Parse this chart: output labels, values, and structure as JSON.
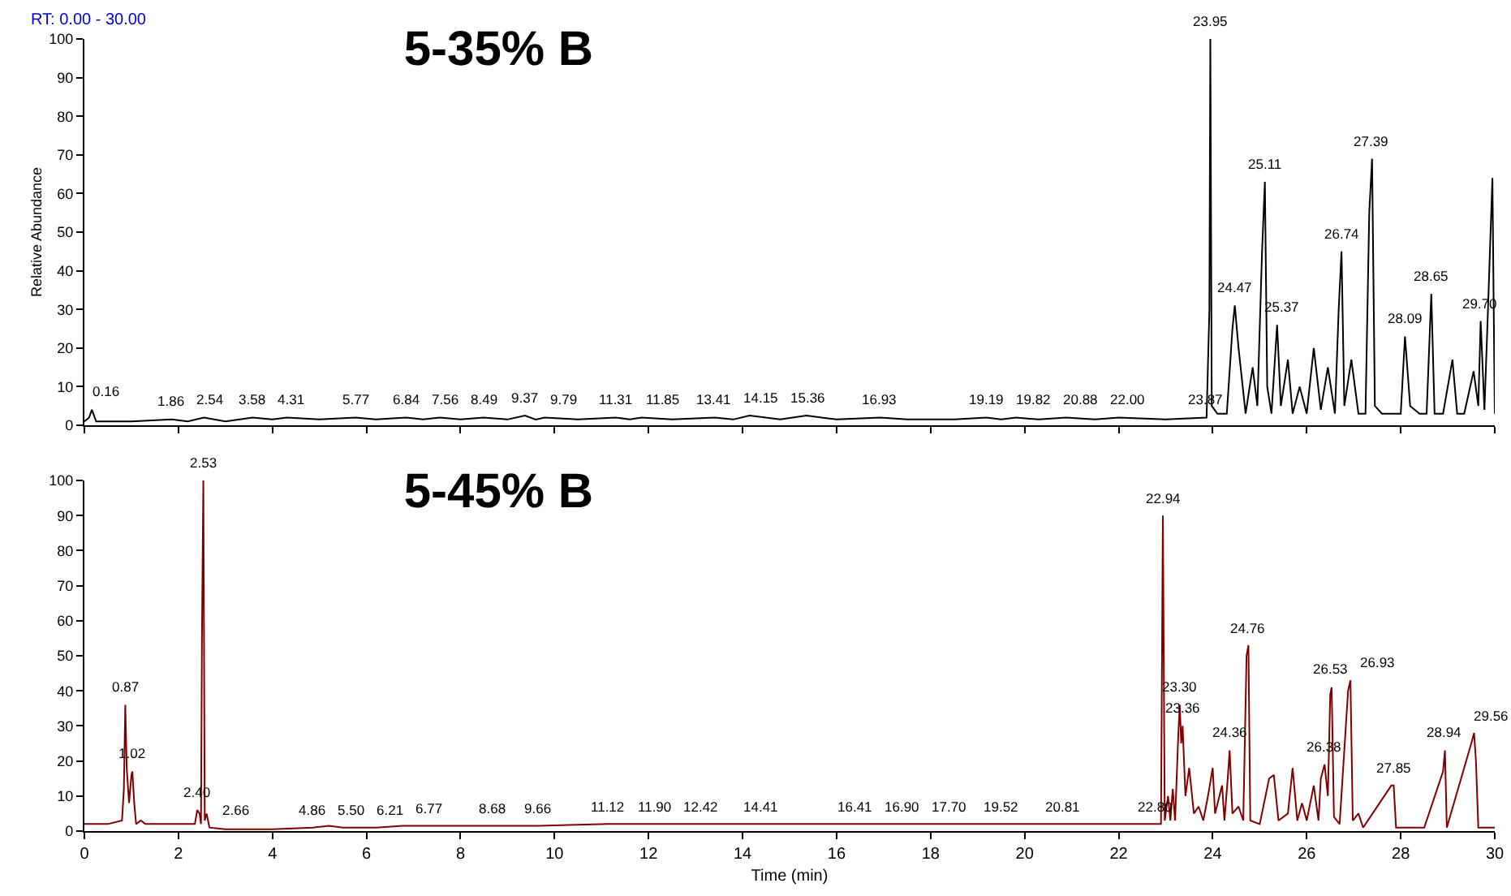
{
  "chart_data": [
    {
      "type": "line",
      "title": "5-35% B",
      "ylabel": "Relative Abundance",
      "xlim": [
        0,
        30
      ],
      "xticks": [
        0,
        2,
        4,
        6,
        8,
        10,
        12,
        14,
        16,
        18,
        20,
        22,
        24,
        26,
        28,
        30
      ],
      "ylim": [
        0,
        100
      ],
      "yticks": [
        0,
        10,
        20,
        30,
        40,
        50,
        60,
        70,
        80,
        90,
        100
      ],
      "tick_labels": "y",
      "grid": false,
      "marker": "none",
      "line_style": "solid",
      "annotations": [
        "RT: 0.00 - 30.00",
        {
          "text": "0.16",
          "x": 0.16,
          "y": 4
        },
        {
          "text": "1.86",
          "x": 1.86,
          "y": 1.5
        },
        {
          "text": "2.54",
          "x": 2.54,
          "y": 2
        },
        {
          "text": "3.58",
          "x": 3.58,
          "y": 2
        },
        {
          "text": "4.31",
          "x": 4.31,
          "y": 2
        },
        {
          "text": "5.77",
          "x": 5.77,
          "y": 2
        },
        {
          "text": "6.84",
          "x": 6.84,
          "y": 2
        },
        {
          "text": "7.56",
          "x": 7.56,
          "y": 2
        },
        {
          "text": "8.49",
          "x": 8.49,
          "y": 2
        },
        {
          "text": "9.37",
          "x": 9.37,
          "y": 2.5
        },
        {
          "text": "9.79",
          "x": 9.79,
          "y": 2
        },
        {
          "text": "11.31",
          "x": 11.31,
          "y": 2
        },
        {
          "text": "11.85",
          "x": 11.85,
          "y": 2
        },
        {
          "text": "13.41",
          "x": 13.41,
          "y": 2
        },
        {
          "text": "14.15",
          "x": 14.15,
          "y": 2.5
        },
        {
          "text": "15.36",
          "x": 15.36,
          "y": 2.5
        },
        {
          "text": "16.93",
          "x": 16.93,
          "y": 2
        },
        {
          "text": "19.19",
          "x": 19.19,
          "y": 2
        },
        {
          "text": "19.82",
          "x": 19.82,
          "y": 2
        },
        {
          "text": "20.88",
          "x": 20.88,
          "y": 2
        },
        {
          "text": "22.00",
          "x": 22,
          "y": 2
        },
        {
          "text": "23.87",
          "x": 23.87,
          "y": 2
        },
        {
          "text": "23.95",
          "x": 23.95,
          "y": 100
        },
        {
          "text": "24.47",
          "x": 24.47,
          "y": 31
        },
        {
          "text": "25.11",
          "x": 25.11,
          "y": 63
        },
        {
          "text": "25.37",
          "x": 25.37,
          "y": 26
        },
        {
          "text": "26.74",
          "x": 26.74,
          "y": 45
        },
        {
          "text": "27.39",
          "x": 27.39,
          "y": 69
        },
        {
          "text": "28.09",
          "x": 28.09,
          "y": 23
        },
        {
          "text": "28.65",
          "x": 28.65,
          "y": 34
        },
        {
          "text": "29.70",
          "x": 29.7,
          "y": 27
        }
      ],
      "series": [
        {
          "color": "#000000",
          "x": [
            0,
            0.1,
            0.16,
            0.25,
            0.5,
            1.0,
            1.86,
            2.2,
            2.54,
            3.0,
            3.58,
            4.0,
            4.31,
            5.0,
            5.77,
            6.2,
            6.84,
            7.2,
            7.56,
            8.0,
            8.49,
            9.0,
            9.37,
            9.6,
            9.79,
            10.5,
            11.31,
            11.6,
            11.85,
            12.5,
            13.41,
            13.8,
            14.15,
            14.8,
            15.36,
            16.0,
            16.93,
            17.5,
            18.5,
            19.19,
            19.5,
            19.82,
            20.3,
            20.88,
            21.5,
            22.0,
            23.0,
            23.87,
            23.93,
            23.95,
            23.98,
            24.1,
            24.3,
            24.42,
            24.47,
            24.55,
            24.7,
            24.85,
            24.95,
            25.05,
            25.11,
            25.16,
            25.25,
            25.37,
            25.45,
            25.6,
            25.7,
            25.85,
            26.0,
            26.15,
            26.3,
            26.45,
            26.6,
            26.68,
            26.74,
            26.8,
            26.95,
            27.1,
            27.25,
            27.33,
            27.39,
            27.45,
            27.6,
            27.8,
            28.0,
            28.09,
            28.2,
            28.4,
            28.55,
            28.65,
            28.72,
            28.9,
            29.1,
            29.2,
            29.35,
            29.55,
            29.65,
            29.7,
            29.78,
            29.85,
            29.95,
            30
          ],
          "values": [
            1,
            2,
            4,
            1,
            1,
            1,
            1.5,
            1,
            2,
            1,
            2,
            1.5,
            2,
            1.5,
            2,
            1.5,
            2,
            1.5,
            2,
            1.5,
            2,
            1.5,
            2.5,
            1.5,
            2,
            1.5,
            2,
            1.5,
            2,
            1.5,
            2,
            1.5,
            2.5,
            1.5,
            2.5,
            1.5,
            2,
            1.5,
            1.5,
            2,
            1.5,
            2,
            1.5,
            2,
            1.5,
            2,
            1.5,
            2,
            30,
            100,
            5,
            3,
            3,
            25,
            31,
            20,
            3,
            15,
            5,
            45,
            63,
            10,
            3,
            26,
            5,
            17,
            3,
            10,
            3,
            20,
            4,
            15,
            3,
            30,
            45,
            5,
            17,
            3,
            3,
            55,
            69,
            5,
            3,
            3,
            3,
            23,
            5,
            3,
            3,
            34,
            3,
            3,
            17,
            3,
            3,
            14,
            5,
            27,
            4,
            28,
            64,
            3
          ]
        }
      ]
    },
    {
      "type": "line",
      "title": "5-45% B",
      "xlabel": "Time (min)",
      "xlim": [
        0,
        30
      ],
      "xticks": [
        0,
        2,
        4,
        6,
        8,
        10,
        12,
        14,
        16,
        18,
        20,
        22,
        24,
        26,
        28,
        30
      ],
      "ylim": [
        0,
        100
      ],
      "yticks": [
        0,
        10,
        20,
        30,
        40,
        50,
        60,
        70,
        80,
        90,
        100
      ],
      "grid": false,
      "marker": "none",
      "line_style": "solid",
      "annotations": [
        {
          "text": "0.87",
          "x": 0.87,
          "y": 36
        },
        {
          "text": "1.02",
          "x": 1.02,
          "y": 17
        },
        {
          "text": "2.40",
          "x": 2.4,
          "y": 6
        },
        {
          "text": "2.53",
          "x": 2.53,
          "y": 100
        },
        {
          "text": "2.66",
          "x": 2.66,
          "y": 1
        },
        {
          "text": "4.86",
          "x": 4.86,
          "y": 1
        },
        {
          "text": "5.50",
          "x": 5.5,
          "y": 1
        },
        {
          "text": "6.21",
          "x": 6.21,
          "y": 1
        },
        {
          "text": "6.77",
          "x": 6.77,
          "y": 1.5
        },
        {
          "text": "8.68",
          "x": 8.68,
          "y": 1.5
        },
        {
          "text": "9.66",
          "x": 9.66,
          "y": 1.5
        },
        {
          "text": "11.12",
          "x": 11.12,
          "y": 2
        },
        {
          "text": "11.90",
          "x": 11.9,
          "y": 2
        },
        {
          "text": "12.42",
          "x": 12.42,
          "y": 2
        },
        {
          "text": "14.41",
          "x": 14.41,
          "y": 2
        },
        {
          "text": "16.41",
          "x": 16.41,
          "y": 2
        },
        {
          "text": "16.90",
          "x": 16.9,
          "y": 2
        },
        {
          "text": "17.70",
          "x": 17.7,
          "y": 2
        },
        {
          "text": "19.52",
          "x": 19.52,
          "y": 2
        },
        {
          "text": "20.81",
          "x": 20.81,
          "y": 2
        },
        {
          "text": "22.80",
          "x": 22.8,
          "y": 2
        },
        {
          "text": "22.94",
          "x": 22.94,
          "y": 90
        },
        {
          "text": "23.30",
          "x": 23.3,
          "y": 36
        },
        {
          "text": "23.36",
          "x": 23.36,
          "y": 30
        },
        {
          "text": "24.36",
          "x": 24.36,
          "y": 23
        },
        {
          "text": "24.76",
          "x": 24.76,
          "y": 53
        },
        {
          "text": "26.38",
          "x": 26.38,
          "y": 19
        },
        {
          "text": "26.53",
          "x": 26.53,
          "y": 41
        },
        {
          "text": "26.93",
          "x": 26.93,
          "y": 43
        },
        {
          "text": "27.85",
          "x": 27.85,
          "y": 13
        },
        {
          "text": "28.94",
          "x": 28.94,
          "y": 23
        },
        {
          "text": "29.56",
          "x": 29.56,
          "y": 28
        }
      ],
      "series": [
        {
          "color": "#800000",
          "x": [
            0,
            0.5,
            0.8,
            0.84,
            0.87,
            0.9,
            0.95,
            1.0,
            1.02,
            1.06,
            1.1,
            1.2,
            1.3,
            2.0,
            2.35,
            2.4,
            2.45,
            2.48,
            2.5,
            2.53,
            2.56,
            2.6,
            2.66,
            3.0,
            4.0,
            4.86,
            5.2,
            5.5,
            6.21,
            6.77,
            8.0,
            8.68,
            9.66,
            11.12,
            11.9,
            12.42,
            13.0,
            14.41,
            15.0,
            16.41,
            16.9,
            17.7,
            18.5,
            19.52,
            20.81,
            21.5,
            22.8,
            22.9,
            22.94,
            22.98,
            23.05,
            23.1,
            23.15,
            23.2,
            23.27,
            23.3,
            23.33,
            23.36,
            23.42,
            23.5,
            23.6,
            23.7,
            23.8,
            23.9,
            24.0,
            24.05,
            24.2,
            24.25,
            24.32,
            24.36,
            24.42,
            24.55,
            24.65,
            24.72,
            24.76,
            24.8,
            25.0,
            25.2,
            25.3,
            25.4,
            25.6,
            25.7,
            25.8,
            25.9,
            26.0,
            26.15,
            26.25,
            26.3,
            26.38,
            26.45,
            26.5,
            26.53,
            26.58,
            26.7,
            26.88,
            26.93,
            26.98,
            27.1,
            27.2,
            27.8,
            27.85,
            27.9,
            28.5,
            28.9,
            28.94,
            28.98,
            29.5,
            29.56,
            29.6,
            29.65,
            30
          ],
          "values": [
            2,
            2,
            3,
            12,
            36,
            18,
            8,
            16,
            17,
            8,
            2,
            3,
            2,
            2,
            2,
            6,
            5,
            2,
            55,
            100,
            3,
            5,
            1,
            0.5,
            0.5,
            1,
            1.5,
            1,
            1,
            1.5,
            1.5,
            1.5,
            1.5,
            2,
            2,
            2,
            2,
            2,
            2,
            2,
            2,
            2,
            2,
            2,
            2,
            2,
            2,
            2,
            90,
            3,
            10,
            3,
            12,
            3,
            28,
            36,
            25,
            30,
            10,
            18,
            5,
            7,
            3,
            10,
            18,
            5,
            13,
            3,
            15,
            23,
            5,
            7,
            3,
            50,
            53,
            3,
            2,
            15,
            16,
            3,
            5,
            18,
            3,
            8,
            3,
            13,
            3,
            15,
            19,
            10,
            39,
            41,
            4,
            2,
            40,
            43,
            3,
            5,
            1,
            13,
            13,
            1,
            1,
            17,
            23,
            1,
            25,
            28,
            20,
            1,
            1
          ]
        }
      ]
    }
  ]
}
